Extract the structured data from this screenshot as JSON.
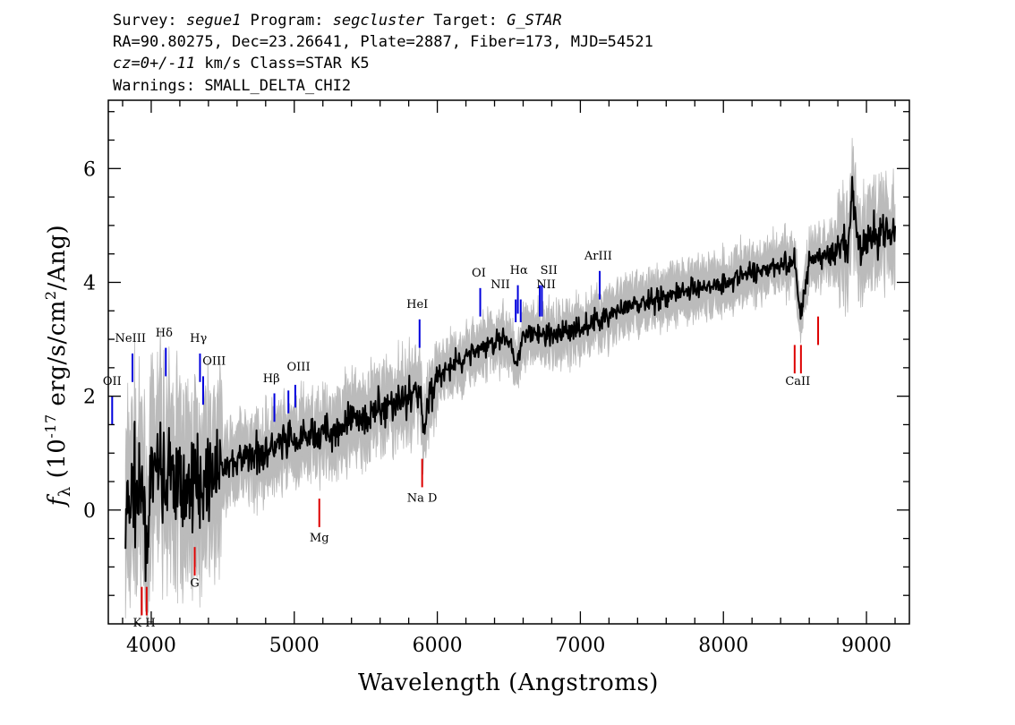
{
  "header": {
    "line1": {
      "survey_label": "Survey: ",
      "survey": "segue1",
      "program_label": " Program: ",
      "program": "segcluster",
      "target_label": " Target: ",
      "target": "G_STAR"
    },
    "line2": "RA=90.80275, Dec=23.26641, Plate=2887, Fiber=173, MJD=54521",
    "line3": {
      "cz": "cz=0+/-11",
      "rest": " km/s Class=STAR K5"
    },
    "line4": "Warnings: SMALL_DELTA_CHI2"
  },
  "colors": {
    "flux": "#000000",
    "error": "#bbbbbb",
    "emission": "#0000dd",
    "absorption": "#dd0000"
  },
  "chart_data": {
    "type": "line",
    "xlabel": "Wavelength (Angstroms)",
    "ylabel": "f_λ (10^-17 erg/s/cm^2/Ang)",
    "xlim": [
      3700,
      9300
    ],
    "ylim": [
      -2.0,
      7.2
    ],
    "x_ticks": [
      4000,
      5000,
      6000,
      7000,
      8000,
      9000
    ],
    "y_ticks": [
      0,
      2,
      4,
      6
    ],
    "grid": false,
    "series": [
      {
        "style": "spectrum-flux",
        "x": [
          3820,
          3850,
          3880,
          3910,
          3940,
          3970,
          4000,
          4050,
          4100,
          4150,
          4200,
          4300,
          4400,
          4500,
          4600,
          4700,
          4800,
          4900,
          5000,
          5100,
          5200,
          5300,
          5400,
          5500,
          5600,
          5700,
          5800,
          5880,
          5900,
          5950,
          6000,
          6100,
          6200,
          6300,
          6400,
          6500,
          6560,
          6600,
          6700,
          6800,
          6900,
          7000,
          7100,
          7200,
          7300,
          7400,
          7500,
          7600,
          7700,
          7800,
          7900,
          8000,
          8100,
          8200,
          8300,
          8400,
          8500,
          8540,
          8600,
          8700,
          8800,
          8880,
          8900,
          8950,
          9000,
          9100,
          9200
        ],
        "y": [
          -0.3,
          0.2,
          0.6,
          0.0,
          0.3,
          -0.4,
          0.5,
          0.8,
          0.4,
          0.7,
          0.3,
          0.5,
          0.6,
          0.7,
          0.85,
          0.95,
          1.05,
          1.15,
          1.2,
          1.3,
          1.35,
          1.45,
          1.55,
          1.7,
          1.75,
          1.9,
          2.0,
          2.2,
          1.3,
          2.1,
          2.3,
          2.5,
          2.7,
          2.85,
          2.95,
          3.0,
          2.6,
          3.05,
          3.1,
          3.05,
          3.15,
          3.2,
          3.3,
          3.45,
          3.5,
          3.6,
          3.7,
          3.75,
          3.85,
          3.9,
          3.95,
          4.0,
          4.1,
          4.15,
          4.25,
          4.3,
          4.35,
          3.4,
          4.4,
          4.45,
          4.5,
          4.7,
          5.6,
          4.6,
          4.7,
          4.9,
          4.95
        ]
      }
    ],
    "emission_lines": [
      {
        "label": "OII",
        "wave": 3727,
        "y_top": 2.0,
        "y_bottom": 1.5
      },
      {
        "label": "NeIII",
        "wave": 3869,
        "y_top": 2.75,
        "y_bottom": 2.25
      },
      {
        "label": "Hδ",
        "wave": 4102,
        "y_top": 2.85,
        "y_bottom": 2.35
      },
      {
        "label": "Hγ",
        "wave": 4341,
        "y_top": 2.75,
        "y_bottom": 2.25
      },
      {
        "label": "OIII",
        "wave": 4363,
        "y_top": 2.35,
        "y_bottom": 1.85
      },
      {
        "label": "Hβ",
        "wave": 4861,
        "y_top": 2.05,
        "y_bottom": 1.55
      },
      {
        "label": "OIII",
        "wave": 4959,
        "y_top": 2.1,
        "y_bottom": 1.7
      },
      {
        "label": "OIII",
        "wave": 5007,
        "y_top": 2.2,
        "y_bottom": 1.8
      },
      {
        "label": "HeI",
        "wave": 5876,
        "y_top": 3.35,
        "y_bottom": 2.85
      },
      {
        "label": "OI",
        "wave": 6300,
        "y_top": 3.9,
        "y_bottom": 3.4
      },
      {
        "label": "NII",
        "wave": 6548,
        "y_top": 3.7,
        "y_bottom": 3.3
      },
      {
        "label": "Hα",
        "wave": 6563,
        "y_top": 3.95,
        "y_bottom": 3.45
      },
      {
        "label": "NII",
        "wave": 6583,
        "y_top": 3.7,
        "y_bottom": 3.3
      },
      {
        "label": "SII",
        "wave": 6716,
        "y_top": 3.95,
        "y_bottom": 3.4
      },
      {
        "label": "SII",
        "wave": 6731,
        "y_top": 3.95,
        "y_bottom": 3.4
      },
      {
        "label": "ArIII",
        "wave": 7135,
        "y_top": 4.2,
        "y_bottom": 3.7
      }
    ],
    "absorption_lines": [
      {
        "label": "K",
        "wave": 3934,
        "y_top": -1.35,
        "y_bottom": -1.85
      },
      {
        "label": "H",
        "wave": 3968,
        "y_top": -1.35,
        "y_bottom": -1.85
      },
      {
        "label": "G",
        "wave": 4304,
        "y_top": -0.65,
        "y_bottom": -1.15
      },
      {
        "label": "Mg",
        "wave": 5175,
        "y_top": 0.2,
        "y_bottom": -0.3
      },
      {
        "label": "Na",
        "wave": 5894,
        "y_top": 0.9,
        "y_bottom": 0.4
      },
      {
        "label": "CaII",
        "wave": 8498,
        "y_top": 2.9,
        "y_bottom": 2.4
      },
      {
        "label": "CaII",
        "wave": 8542,
        "y_top": 2.9,
        "y_bottom": 2.4
      },
      {
        "label": "CaII",
        "wave": 8662,
        "y_top": 3.4,
        "y_bottom": 2.9
      }
    ],
    "line_labels": [
      {
        "text": "OII",
        "wave": 3727,
        "y": 2.2
      },
      {
        "text": "NeIII",
        "wave": 3855,
        "y": 2.95
      },
      {
        "text": "Hδ",
        "wave": 4090,
        "y": 3.05
      },
      {
        "text": "Hγ",
        "wave": 4330,
        "y": 2.95
      },
      {
        "text": "OIII",
        "wave": 4440,
        "y": 2.55
      },
      {
        "text": "Hβ",
        "wave": 4840,
        "y": 2.25
      },
      {
        "text": "OIII",
        "wave": 5030,
        "y": 2.45
      },
      {
        "text": "HeI",
        "wave": 5860,
        "y": 3.55
      },
      {
        "text": "OI",
        "wave": 6290,
        "y": 4.1
      },
      {
        "text": "NII",
        "wave": 6440,
        "y": 3.9
      },
      {
        "text": "Hα",
        "wave": 6570,
        "y": 4.15
      },
      {
        "text": "SII",
        "wave": 6780,
        "y": 4.15
      },
      {
        "text": "NII",
        "wave": 6760,
        "y": 3.9
      },
      {
        "text": "ArIII",
        "wave": 7125,
        "y": 4.4
      },
      {
        "text": "CaII",
        "wave": 8520,
        "y": 2.2
      },
      {
        "text": "G",
        "wave": 4304,
        "y": -1.35
      },
      {
        "text": "Mg",
        "wave": 5175,
        "y": -0.55
      },
      {
        "text": "Na  D",
        "wave": 5894,
        "y": 0.15
      },
      {
        "text": "K H",
        "wave": 3951,
        "y": -2.05
      }
    ]
  }
}
